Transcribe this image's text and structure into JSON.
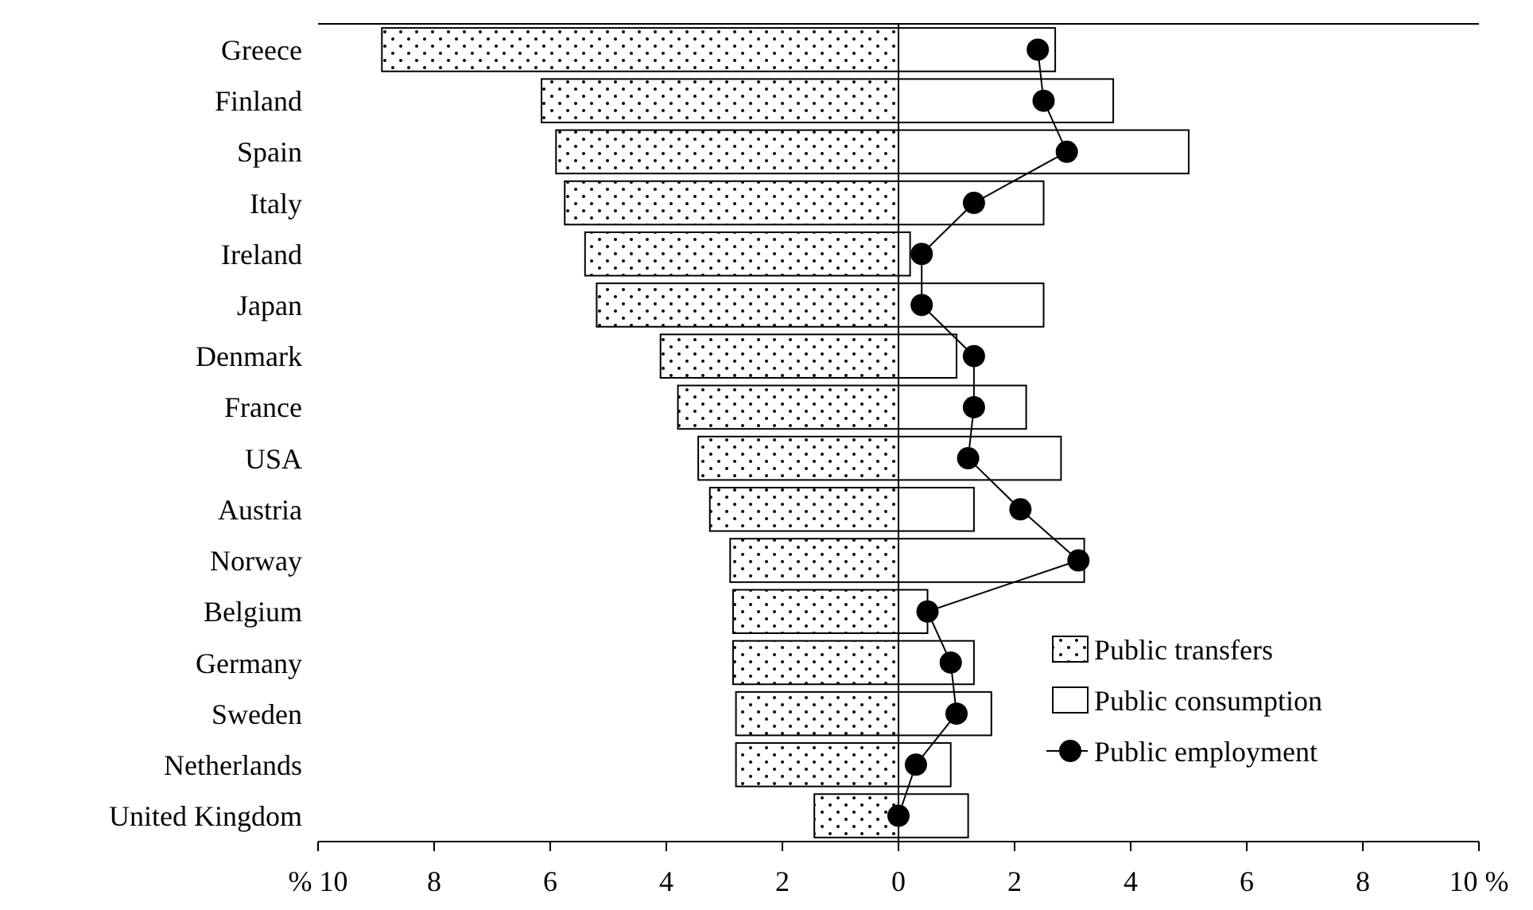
{
  "chart_data": {
    "type": "bar",
    "orientation": "horizontal",
    "stacked": true,
    "categories": [
      "Greece",
      "Finland",
      "Spain",
      "Italy",
      "Ireland",
      "Japan",
      "Denmark",
      "France",
      "USA",
      "Austria",
      "Norway",
      "Belgium",
      "Germany",
      "Sweden",
      "Netherlands",
      "United Kingdom"
    ],
    "series": [
      {
        "name": "Public transfers",
        "color": "#000000",
        "values": [
          -8.9,
          -6.15,
          -5.9,
          -5.75,
          -5.4,
          -5.2,
          -4.1,
          -3.8,
          -3.45,
          -3.25,
          -2.9,
          -2.85,
          -2.85,
          -2.8,
          -2.8,
          -1.45
        ]
      },
      {
        "name": "Public consumption",
        "color": "#ffffff",
        "values": [
          2.7,
          3.7,
          5.0,
          2.5,
          0.2,
          2.5,
          1.0,
          2.2,
          2.8,
          1.3,
          3.2,
          0.5,
          1.3,
          1.6,
          0.9,
          1.2
        ]
      },
      {
        "name": "Public employment",
        "type": "line",
        "color": "#000000",
        "marker": "circle",
        "values": [
          2.4,
          2.5,
          2.9,
          1.3,
          0.4,
          0.4,
          1.3,
          1.3,
          1.2,
          2.1,
          3.1,
          0.5,
          0.9,
          1.0,
          0.3,
          0
        ]
      }
    ],
    "xlim": [
      -10,
      10
    ],
    "xticks": [
      {
        "value": -10,
        "label": "% 10"
      },
      {
        "value": -8,
        "label": "8"
      },
      {
        "value": -6,
        "label": "6"
      },
      {
        "value": -4,
        "label": "4"
      },
      {
        "value": -2,
        "label": "2"
      },
      0,
      2,
      4,
      6,
      8,
      {
        "value": 10,
        "label": "10 %"
      }
    ],
    "ref_lines": [
      {
        "axis": "x",
        "value": 0
      }
    ],
    "legend": "bottom right",
    "grid": false
  }
}
